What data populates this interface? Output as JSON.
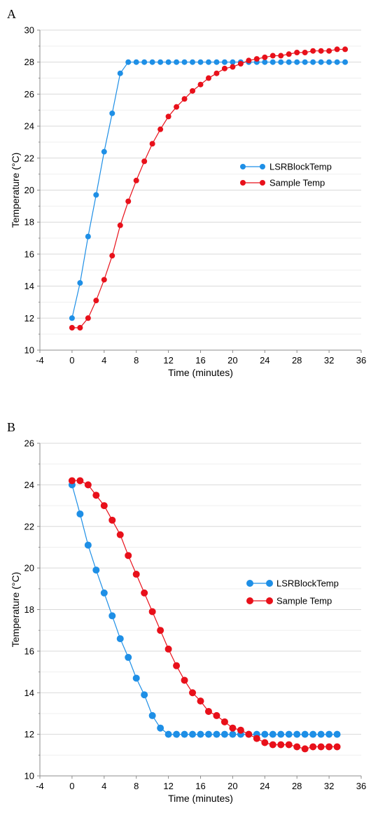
{
  "chart_data": [
    {
      "panel_label": "A",
      "type": "line",
      "xlabel": "Time (minutes)",
      "ylabel": "Temperature (°C)",
      "xlim": [
        -4,
        36
      ],
      "ylim": [
        10,
        30
      ],
      "xticks": [
        -4,
        0,
        4,
        8,
        12,
        16,
        20,
        24,
        28,
        32,
        36
      ],
      "yticks": [
        10,
        12,
        14,
        16,
        18,
        20,
        22,
        24,
        26,
        28,
        30
      ],
      "grid": "horizontal",
      "legend_position": "right-middle",
      "series": [
        {
          "name": "LSRBlockTemp",
          "color": "#1e8fe6",
          "x": [
            0,
            1,
            2,
            3,
            4,
            5,
            6,
            7,
            8,
            9,
            10,
            11,
            12,
            13,
            14,
            15,
            16,
            17,
            18,
            19,
            20,
            21,
            22,
            23,
            24,
            25,
            26,
            27,
            28,
            29,
            30,
            31,
            32,
            33,
            34
          ],
          "y": [
            12.0,
            14.2,
            17.1,
            19.7,
            22.4,
            24.8,
            27.3,
            28.0,
            28.0,
            28.0,
            28.0,
            28.0,
            28.0,
            28.0,
            28.0,
            28.0,
            28.0,
            28.0,
            28.0,
            28.0,
            28.0,
            28.0,
            28.0,
            28.0,
            28.0,
            28.0,
            28.0,
            28.0,
            28.0,
            28.0,
            28.0,
            28.0,
            28.0,
            28.0,
            28.0
          ]
        },
        {
          "name": "Sample Temp",
          "color": "#e8101a",
          "x": [
            0,
            1,
            2,
            3,
            4,
            5,
            6,
            7,
            8,
            9,
            10,
            11,
            12,
            13,
            14,
            15,
            16,
            17,
            18,
            19,
            20,
            21,
            22,
            23,
            24,
            25,
            26,
            27,
            28,
            29,
            30,
            31,
            32,
            33,
            34
          ],
          "y": [
            11.4,
            11.4,
            12.0,
            13.1,
            14.4,
            15.9,
            17.8,
            19.3,
            20.6,
            21.8,
            22.9,
            23.8,
            24.6,
            25.2,
            25.7,
            26.2,
            26.6,
            27.0,
            27.3,
            27.6,
            27.7,
            27.9,
            28.1,
            28.2,
            28.3,
            28.4,
            28.4,
            28.5,
            28.6,
            28.6,
            28.7,
            28.7,
            28.7,
            28.8,
            28.8
          ]
        }
      ]
    },
    {
      "panel_label": "B",
      "type": "line",
      "xlabel": "Time (minutes)",
      "ylabel": "Temperature (°C)",
      "xlim": [
        -4,
        36
      ],
      "ylim": [
        10,
        26
      ],
      "xticks": [
        -4,
        0,
        4,
        8,
        12,
        16,
        20,
        24,
        28,
        32,
        36
      ],
      "yticks": [
        10,
        12,
        14,
        16,
        18,
        20,
        22,
        24,
        26
      ],
      "grid": "horizontal",
      "legend_position": "right-middle",
      "series": [
        {
          "name": "LSRBlockTemp",
          "color": "#1e8fe6",
          "x": [
            0,
            1,
            2,
            3,
            4,
            5,
            6,
            7,
            8,
            9,
            10,
            11,
            12,
            13,
            14,
            15,
            16,
            17,
            18,
            19,
            20,
            21,
            22,
            23,
            24,
            25,
            26,
            27,
            28,
            29,
            30,
            31,
            32,
            33
          ],
          "y": [
            24.0,
            22.6,
            21.1,
            19.9,
            18.8,
            17.7,
            16.6,
            15.7,
            14.7,
            13.9,
            12.9,
            12.3,
            12.0,
            12.0,
            12.0,
            12.0,
            12.0,
            12.0,
            12.0,
            12.0,
            12.0,
            12.0,
            12.0,
            12.0,
            12.0,
            12.0,
            12.0,
            12.0,
            12.0,
            12.0,
            12.0,
            12.0,
            12.0,
            12.0
          ]
        },
        {
          "name": "Sample Temp",
          "color": "#e8101a",
          "x": [
            0,
            1,
            2,
            3,
            4,
            5,
            6,
            7,
            8,
            9,
            10,
            11,
            12,
            13,
            14,
            15,
            16,
            17,
            18,
            19,
            20,
            21,
            22,
            23,
            24,
            25,
            26,
            27,
            28,
            29,
            30,
            31,
            32,
            33
          ],
          "y": [
            24.2,
            24.2,
            24.0,
            23.5,
            23.0,
            22.3,
            21.6,
            20.6,
            19.7,
            18.8,
            17.9,
            17.0,
            16.1,
            15.3,
            14.6,
            14.0,
            13.6,
            13.1,
            12.9,
            12.6,
            12.3,
            12.2,
            12.0,
            11.8,
            11.6,
            11.5,
            11.5,
            11.5,
            11.4,
            11.3,
            11.4,
            11.4,
            11.4,
            11.4
          ]
        }
      ]
    }
  ]
}
